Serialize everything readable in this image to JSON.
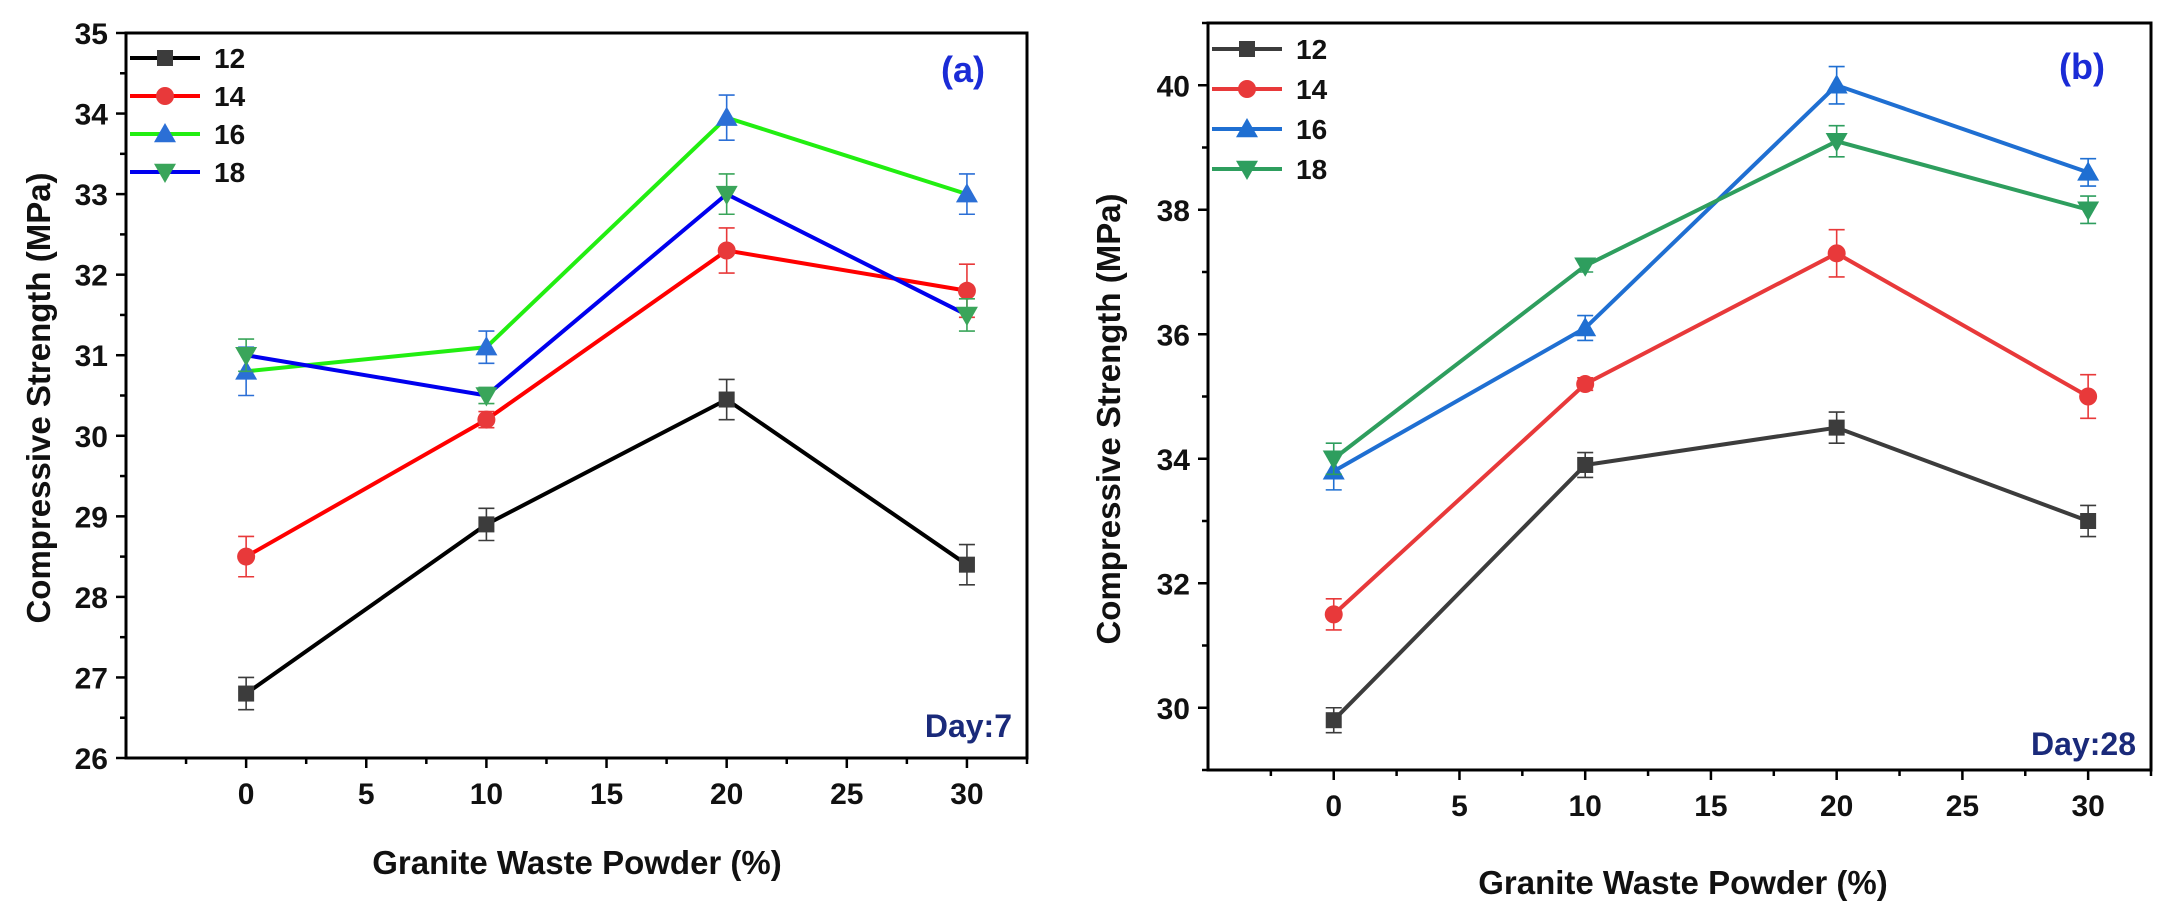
{
  "chart_data": [
    {
      "type": "line",
      "panel_label": "(a)",
      "day_label": "Day:7",
      "xlabel": "Granite Waste Powder (%)",
      "ylabel": "Compressive Strength (MPa)",
      "xlim": [
        -5,
        32.5
      ],
      "ylim": [
        26,
        35
      ],
      "xticks": [
        0,
        5,
        10,
        15,
        20,
        25,
        30
      ],
      "yticks": [
        26,
        27,
        28,
        29,
        30,
        31,
        32,
        33,
        34,
        35
      ],
      "x": [
        0,
        10,
        20,
        30
      ],
      "series": [
        {
          "name": "12",
          "color": "#000000",
          "marker_color": "#3c3c3c",
          "marker": "square",
          "values": [
            26.8,
            28.9,
            30.45,
            28.4
          ],
          "errors": [
            0.2,
            0.2,
            0.25,
            0.25
          ]
        },
        {
          "name": "14",
          "color": "#ff0000",
          "marker_color": "#e8393a",
          "marker": "circle",
          "values": [
            28.5,
            30.2,
            32.3,
            31.8
          ],
          "errors": [
            0.25,
            0.1,
            0.28,
            0.33
          ]
        },
        {
          "name": "16",
          "color": "#22ee11",
          "marker_color": "#2b6fd6",
          "marker": "triangle-up",
          "values": [
            30.8,
            31.1,
            33.95,
            33.0
          ],
          "errors": [
            0.3,
            0.2,
            0.28,
            0.25
          ]
        },
        {
          "name": "18",
          "color": "#0000ee",
          "marker_color": "#3aa55a",
          "marker": "triangle-down",
          "values": [
            31.0,
            30.5,
            33.0,
            31.5
          ],
          "errors": [
            0.2,
            0.1,
            0.25,
            0.2
          ]
        }
      ]
    },
    {
      "type": "line",
      "panel_label": "(b)",
      "day_label": "Day:28",
      "xlabel": "Granite Waste Powder (%)",
      "ylabel": "Compressive Strength (MPa)",
      "xlim": [
        -5,
        32.5
      ],
      "ylim": [
        29,
        41
      ],
      "xticks": [
        0,
        5,
        10,
        15,
        20,
        25,
        30
      ],
      "yticks": [
        30,
        32,
        34,
        36,
        38,
        40
      ],
      "x": [
        0,
        10,
        20,
        30
      ],
      "series": [
        {
          "name": "12",
          "color": "#3c3c3c",
          "marker_color": "#3c3c3c",
          "marker": "square",
          "values": [
            29.8,
            33.9,
            34.5,
            33.0
          ],
          "errors": [
            0.2,
            0.2,
            0.25,
            0.25
          ]
        },
        {
          "name": "14",
          "color": "#e8393a",
          "marker_color": "#e8393a",
          "marker": "circle",
          "values": [
            31.5,
            35.2,
            37.3,
            35.0
          ],
          "errors": [
            0.25,
            0.1,
            0.38,
            0.35
          ]
        },
        {
          "name": "16",
          "color": "#1f6fd2",
          "marker_color": "#1f6fd2",
          "marker": "triangle-up",
          "values": [
            33.8,
            36.1,
            40.0,
            38.6
          ],
          "errors": [
            0.3,
            0.2,
            0.3,
            0.22
          ]
        },
        {
          "name": "18",
          "color": "#2e9e5e",
          "marker_color": "#2e9e5e",
          "marker": "triangle-down",
          "values": [
            34.0,
            37.1,
            39.1,
            38.0
          ],
          "errors": [
            0.25,
            0.1,
            0.25,
            0.22
          ]
        }
      ]
    }
  ]
}
